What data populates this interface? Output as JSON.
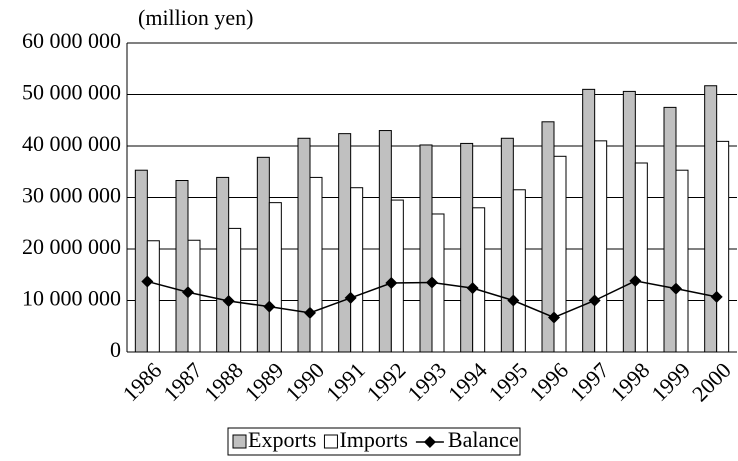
{
  "chart_data": {
    "type": "bar_line",
    "y_label": "(million yen)",
    "categories": [
      "1986",
      "1987",
      "1988",
      "1989",
      "1990",
      "1991",
      "1992",
      "1993",
      "1994",
      "1995",
      "1996",
      "1997",
      "1998",
      "1999",
      "2000"
    ],
    "series": [
      {
        "name": "Exports",
        "color": "#c0c0c0",
        "type": "bar",
        "values": [
          35300000,
          33300000,
          33900000,
          37800000,
          41500000,
          42400000,
          43000000,
          40200000,
          40500000,
          41500000,
          44700000,
          51000000,
          50600000,
          47500000,
          51700000
        ]
      },
      {
        "name": "Imports",
        "color": "#ffffff",
        "type": "bar",
        "values": [
          21600000,
          21700000,
          24000000,
          29000000,
          33900000,
          31900000,
          29500000,
          26800000,
          28000000,
          31500000,
          38000000,
          41000000,
          36700000,
          35300000,
          40900000
        ]
      },
      {
        "name": "Balance",
        "color": "#000000",
        "type": "line",
        "values": [
          13700000,
          11600000,
          9900000,
          8800000,
          7600000,
          10500000,
          13400000,
          13500000,
          12400000,
          10000000,
          6700000,
          10000000,
          13800000,
          12300000,
          10700000
        ]
      }
    ],
    "ylim": [
      0,
      60000000
    ],
    "yticks": [
      0,
      {
        "value": 10000000,
        "label": "10 000 000"
      },
      {
        "value": 20000000,
        "label": "20 000 000"
      },
      {
        "value": 30000000,
        "label": "30 000 000"
      },
      {
        "value": 40000000,
        "label": "40 000 000"
      },
      {
        "value": 50000000,
        "label": "50 000 000"
      },
      {
        "value": 60000000,
        "label": "60 000 000"
      }
    ],
    "grid": true,
    "legend": "bottom"
  }
}
